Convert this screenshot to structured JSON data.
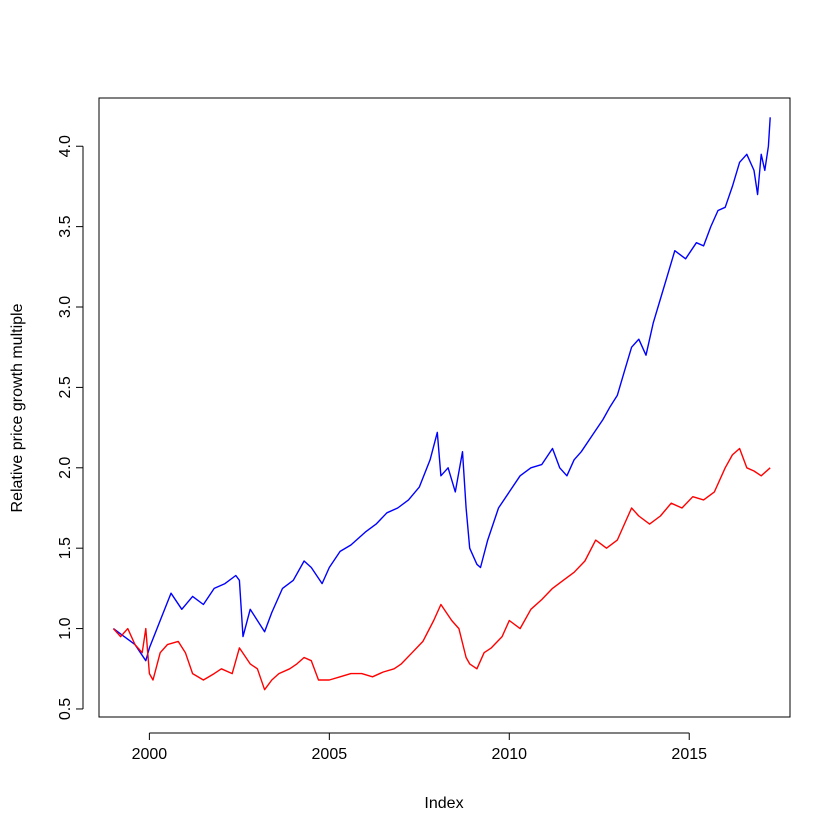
{
  "chart_data": {
    "type": "line",
    "title": "",
    "xlabel": "Index",
    "ylabel": "Relative price growth multiple",
    "xlim": [
      1998.6,
      2017.8
    ],
    "ylim": [
      0.45,
      4.3
    ],
    "xticks": [
      2000,
      2005,
      2010,
      2015
    ],
    "yticks": [
      0.5,
      1.0,
      1.5,
      2.0,
      2.5,
      3.0,
      3.5,
      4.0
    ],
    "ytick_labels": [
      "0.5",
      "1.0",
      "1.5",
      "2.0",
      "2.5",
      "3.0",
      "3.5",
      "4.0"
    ],
    "grid": false,
    "legend": "none",
    "series": [
      {
        "color": "#0000ff",
        "x": [
          1999.0,
          1999.3,
          1999.6,
          1999.9,
          2000.0,
          2000.3,
          2000.6,
          2000.9,
          2001.2,
          2001.5,
          2001.8,
          2002.1,
          2002.4,
          2002.5,
          2002.6,
          2002.8,
          2003.0,
          2003.2,
          2003.4,
          2003.7,
          2004.0,
          2004.3,
          2004.5,
          2004.8,
          2005.0,
          2005.3,
          2005.6,
          2006.0,
          2006.3,
          2006.6,
          2006.9,
          2007.2,
          2007.5,
          2007.8,
          2008.0,
          2008.1,
          2008.3,
          2008.5,
          2008.7,
          2008.8,
          2008.9,
          2009.1,
          2009.2,
          2009.4,
          2009.7,
          2010.0,
          2010.3,
          2010.6,
          2010.9,
          2011.2,
          2011.4,
          2011.6,
          2011.8,
          2012.0,
          2012.3,
          2012.6,
          2012.8,
          2013.0,
          2013.2,
          2013.4,
          2013.6,
          2013.8,
          2014.0,
          2014.2,
          2014.4,
          2014.6,
          2014.9,
          2015.2,
          2015.4,
          2015.6,
          2015.8,
          2016.0,
          2016.2,
          2016.4,
          2016.6,
          2016.8,
          2016.9,
          2017.0,
          2017.1,
          2017.2,
          2017.25
        ],
        "y": [
          1.0,
          0.95,
          0.9,
          0.8,
          0.88,
          1.05,
          1.22,
          1.12,
          1.2,
          1.15,
          1.25,
          1.28,
          1.33,
          1.3,
          0.95,
          1.12,
          1.05,
          0.98,
          1.1,
          1.25,
          1.3,
          1.42,
          1.38,
          1.28,
          1.38,
          1.48,
          1.52,
          1.6,
          1.65,
          1.72,
          1.75,
          1.8,
          1.88,
          2.05,
          2.22,
          1.95,
          2.0,
          1.85,
          2.1,
          1.75,
          1.5,
          1.4,
          1.38,
          1.55,
          1.75,
          1.85,
          1.95,
          2.0,
          2.02,
          2.12,
          2.0,
          1.95,
          2.05,
          2.1,
          2.2,
          2.3,
          2.38,
          2.45,
          2.6,
          2.75,
          2.8,
          2.7,
          2.9,
          3.05,
          3.2,
          3.35,
          3.3,
          3.4,
          3.38,
          3.5,
          3.6,
          3.62,
          3.75,
          3.9,
          3.95,
          3.85,
          3.7,
          3.95,
          3.85,
          4.0,
          4.18
        ]
      },
      {
        "color": "#ff0000",
        "x": [
          1999.0,
          1999.2,
          1999.4,
          1999.6,
          1999.8,
          1999.9,
          2000.0,
          2000.1,
          2000.3,
          2000.5,
          2000.8,
          2001.0,
          2001.2,
          2001.5,
          2001.8,
          2002.0,
          2002.3,
          2002.5,
          2002.8,
          2003.0,
          2003.2,
          2003.4,
          2003.6,
          2003.9,
          2004.1,
          2004.3,
          2004.5,
          2004.7,
          2005.0,
          2005.3,
          2005.6,
          2005.9,
          2006.2,
          2006.5,
          2006.8,
          2007.0,
          2007.3,
          2007.6,
          2007.9,
          2008.1,
          2008.4,
          2008.6,
          2008.8,
          2008.9,
          2009.1,
          2009.3,
          2009.5,
          2009.8,
          2010.0,
          2010.3,
          2010.6,
          2010.9,
          2011.2,
          2011.5,
          2011.8,
          2012.1,
          2012.4,
          2012.7,
          2013.0,
          2013.2,
          2013.4,
          2013.6,
          2013.9,
          2014.2,
          2014.5,
          2014.8,
          2015.1,
          2015.4,
          2015.7,
          2016.0,
          2016.2,
          2016.4,
          2016.6,
          2016.8,
          2017.0,
          2017.25
        ],
        "y": [
          1.0,
          0.95,
          1.0,
          0.9,
          0.85,
          1.0,
          0.72,
          0.68,
          0.85,
          0.9,
          0.92,
          0.85,
          0.72,
          0.68,
          0.72,
          0.75,
          0.72,
          0.88,
          0.78,
          0.75,
          0.62,
          0.68,
          0.72,
          0.75,
          0.78,
          0.82,
          0.8,
          0.68,
          0.68,
          0.7,
          0.72,
          0.72,
          0.7,
          0.73,
          0.75,
          0.78,
          0.85,
          0.92,
          1.05,
          1.15,
          1.05,
          1.0,
          0.82,
          0.78,
          0.75,
          0.85,
          0.88,
          0.95,
          1.05,
          1.0,
          1.12,
          1.18,
          1.25,
          1.3,
          1.35,
          1.42,
          1.55,
          1.5,
          1.55,
          1.65,
          1.75,
          1.7,
          1.65,
          1.7,
          1.78,
          1.75,
          1.82,
          1.8,
          1.85,
          2.0,
          2.08,
          2.12,
          2.0,
          1.98,
          1.95,
          2.0
        ]
      }
    ]
  }
}
